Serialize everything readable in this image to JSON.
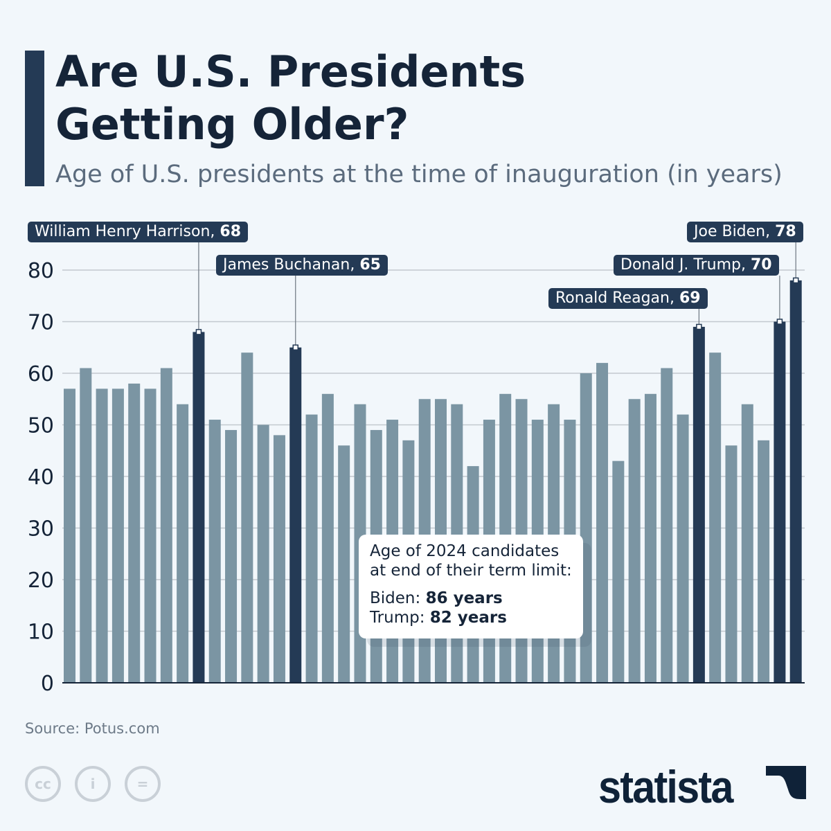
{
  "header": {
    "title_line1": "Are U.S. Presidents",
    "title_line2": "Getting Older?",
    "subtitle": "Age of U.S. presidents at the time of inauguration (in years)"
  },
  "chart_data": {
    "type": "bar",
    "title": "Are U.S. Presidents Getting Older?",
    "subtitle": "Age of U.S. presidents at the time of inauguration (in years)",
    "ylim": [
      0,
      80
    ],
    "yticks": [
      0,
      10,
      20,
      30,
      40,
      50,
      60,
      70,
      80
    ],
    "grid": true,
    "values": [
      57,
      61,
      57,
      57,
      58,
      57,
      61,
      54,
      68,
      51,
      49,
      64,
      50,
      48,
      65,
      52,
      56,
      46,
      54,
      49,
      51,
      47,
      55,
      55,
      54,
      42,
      51,
      56,
      55,
      51,
      54,
      51,
      60,
      62,
      43,
      55,
      56,
      61,
      52,
      69,
      64,
      46,
      54,
      47,
      70,
      78
    ],
    "highlighted": [
      8,
      14,
      39,
      44,
      45
    ],
    "colors": {
      "bar": "#7b95a3",
      "highlight": "#243a55"
    },
    "annotations": [
      {
        "index": 8,
        "name": "William Henry Harrison",
        "value": "68"
      },
      {
        "index": 14,
        "name": "James Buchanan",
        "value": "65"
      },
      {
        "index": 39,
        "name": "Ronald Reagan",
        "value": "69"
      },
      {
        "index": 44,
        "name": "Donald J. Trump",
        "value": "70"
      },
      {
        "index": 45,
        "name": "Joe Biden",
        "value": "78"
      }
    ]
  },
  "callout": {
    "line1": "Age of 2024 candidates",
    "line2": "at end of their term limit:",
    "biden_label": "Biden:",
    "biden_value": "86 years",
    "trump_label": "Trump:",
    "trump_value": "82 years"
  },
  "footer": {
    "source": "Source: Potus.com",
    "logo": "statista",
    "license_icons": [
      "cc-icon",
      "attribution-icon",
      "no-derivatives-icon"
    ]
  }
}
